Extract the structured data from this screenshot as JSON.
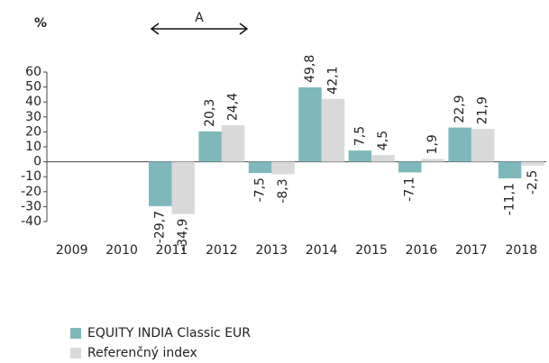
{
  "chart_data": {
    "type": "bar",
    "y_label": "%",
    "annotation": "A",
    "categories": [
      "2009",
      "2010",
      "2011",
      "2012",
      "2013",
      "2014",
      "2015",
      "2016",
      "2017",
      "2018"
    ],
    "series": [
      {
        "name": "EQUITY INDIA Classic EUR",
        "color": "#7fb8bb",
        "values": [
          null,
          null,
          -29.7,
          20.3,
          -7.5,
          49.8,
          7.5,
          -7.1,
          22.9,
          -11.1
        ],
        "value_labels": [
          null,
          null,
          "-29,7",
          "20,3",
          "-7,5",
          "49,8",
          "7,5",
          "-7,1",
          "22,9",
          "-11,1"
        ]
      },
      {
        "name": "Referenčný index",
        "color": "#d9d9d9",
        "values": [
          null,
          null,
          -34.9,
          24.4,
          -8.3,
          42.1,
          4.5,
          1.9,
          21.9,
          -2.5
        ],
        "value_labels": [
          null,
          null,
          "-34,9",
          "24,4",
          "-8,3",
          "42,1",
          "4,5",
          "1,9",
          "21,9",
          "-2,5"
        ]
      }
    ],
    "ylim": [
      -40,
      60
    ],
    "yticks": [
      60,
      50,
      40,
      30,
      20,
      10,
      0,
      -10,
      -20,
      -30,
      -40
    ],
    "legend": "bottom-left",
    "grid": false
  }
}
